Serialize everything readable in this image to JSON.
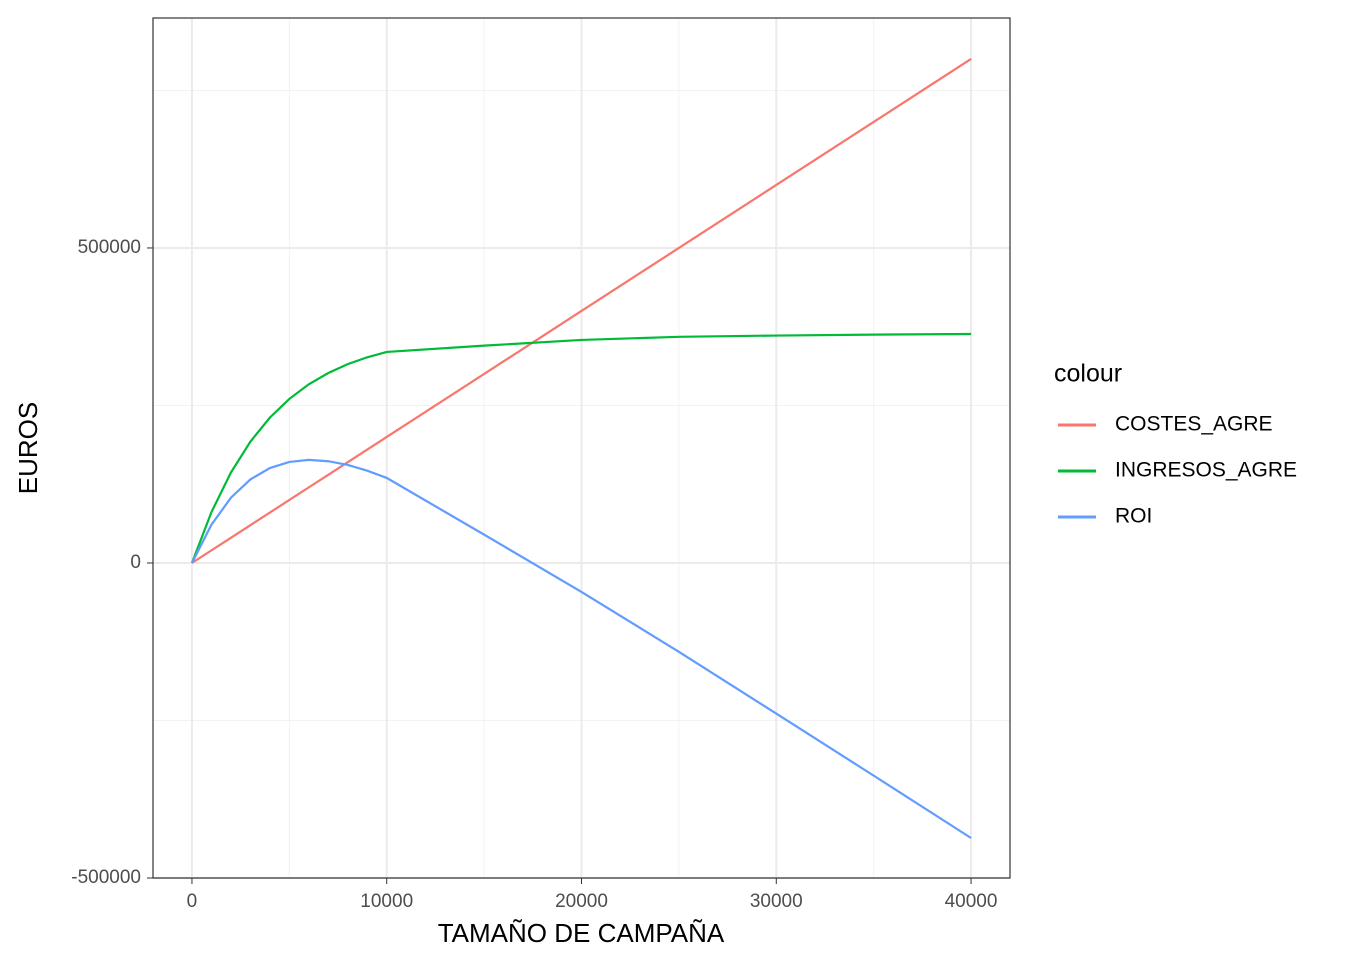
{
  "chart_data": {
    "type": "line",
    "x_label": "TAMAÑO DE CAMPAÑA",
    "y_label": "EUROS",
    "legend_title": "colour",
    "x": [
      0,
      1000,
      2000,
      3000,
      4000,
      5000,
      6000,
      7000,
      8000,
      9000,
      10000,
      15000,
      20000,
      25000,
      30000,
      35000,
      40000
    ],
    "series": [
      {
        "name": "COSTES_AGRE",
        "color": "#F8766D",
        "values": [
          0,
          20000,
          40000,
          60000,
          80000,
          100000,
          120000,
          140000,
          160000,
          180000,
          200000,
          300000,
          400000,
          500000,
          600000,
          700000,
          800000
        ]
      },
      {
        "name": "INGRESOS_AGRE",
        "color": "#00BA38",
        "values": [
          0,
          80700,
          143600,
          192600,
          230700,
          260400,
          283600,
          301500,
          315600,
          326500,
          335000,
          345000,
          354000,
          359000,
          361000,
          362500,
          363500
        ]
      },
      {
        "name": "ROI",
        "color": "#619CFF",
        "values": [
          0,
          60700,
          103600,
          132600,
          150700,
          160400,
          163600,
          161500,
          155600,
          146500,
          135000,
          45000,
          -46000,
          -141000,
          -239000,
          -337500,
          -436500
        ]
      }
    ],
    "xlim": [
      -2000,
      42000
    ],
    "xticks": [
      0,
      10000,
      20000,
      30000,
      40000
    ],
    "ylim": [
      -500000,
      865000
    ],
    "yticks": [
      -500000,
      0,
      500000
    ],
    "x_minor_breaks": [
      5000,
      15000,
      25000,
      35000
    ],
    "y_minor_breaks": [
      -250000,
      250000,
      750000
    ],
    "grid": true,
    "legend_position": "right"
  }
}
